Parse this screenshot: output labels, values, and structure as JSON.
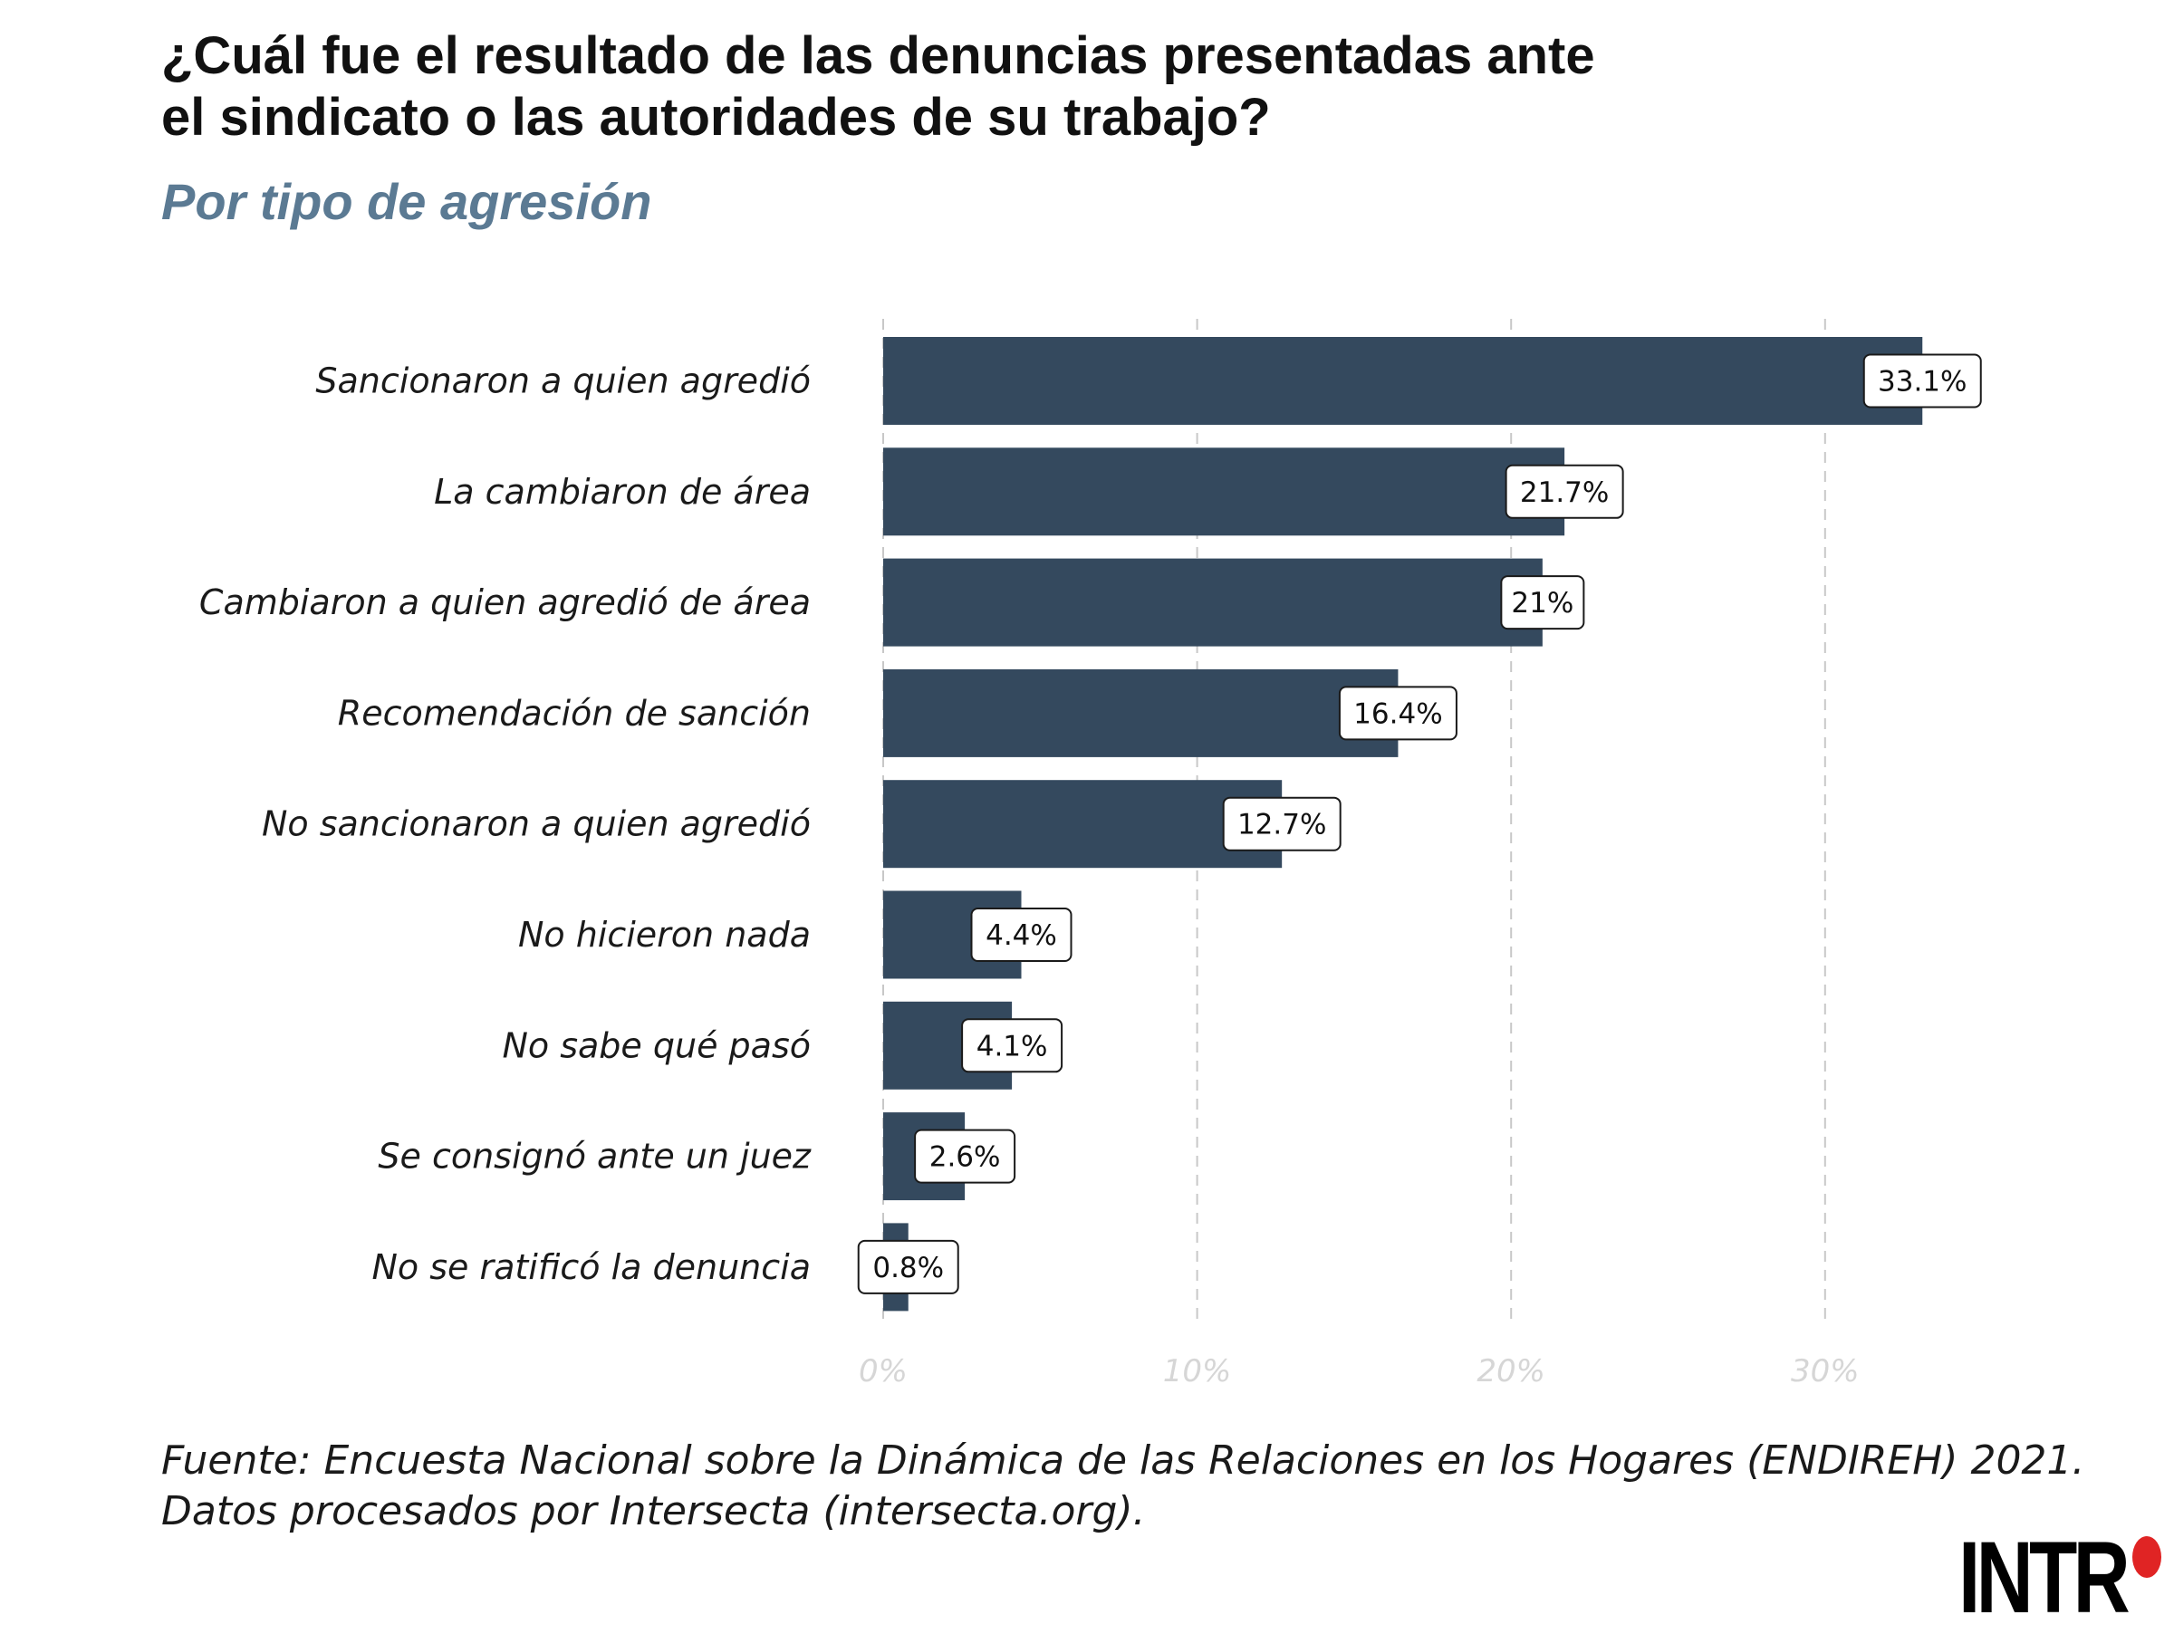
{
  "title_lines": [
    "¿Cuál fue el resultado de las denuncias presentadas ante",
    "el sindicato o las autoridades de su trabajo?"
  ],
  "subtitle": "Por tipo de agresión",
  "caption_lines": [
    "Fuente: Encuesta Nacional sobre la Dinámica de las Relaciones en los Hogares (ENDIREH) 2021.",
    "Datos procesados por Intersecta (intersecta.org)."
  ],
  "logo": {
    "text": "INTR",
    "accent_color": "#e02424"
  },
  "colors": {
    "bar": "#34495e",
    "grid": "#c8c8c8",
    "tick_text": "#d6d6d6"
  },
  "chart_data": {
    "type": "bar",
    "orientation": "horizontal",
    "categories": [
      "Sancionaron a quien agredió",
      "La cambiaron de área",
      "Cambiaron a quien agredió de área",
      "Recomendación de sanción",
      "No sancionaron a quien agredió",
      "No hicieron nada",
      "No sabe qué pasó",
      "Se consignó ante un juez",
      "No se ratificó la denuncia"
    ],
    "values": [
      33.1,
      21.7,
      21,
      16.4,
      12.7,
      4.4,
      4.1,
      2.6,
      0.8
    ],
    "value_labels": [
      "33.1%",
      "21.7%",
      "21%",
      "16.4%",
      "12.7%",
      "4.4%",
      "4.1%",
      "2.6%",
      "0.8%"
    ],
    "x_ticks": [
      0,
      10,
      20,
      30
    ],
    "x_tick_labels": [
      "0%",
      "10%",
      "20%",
      "30%"
    ],
    "xlim": [
      0,
      35
    ],
    "grid": "vertical dashed",
    "legend": "none"
  }
}
